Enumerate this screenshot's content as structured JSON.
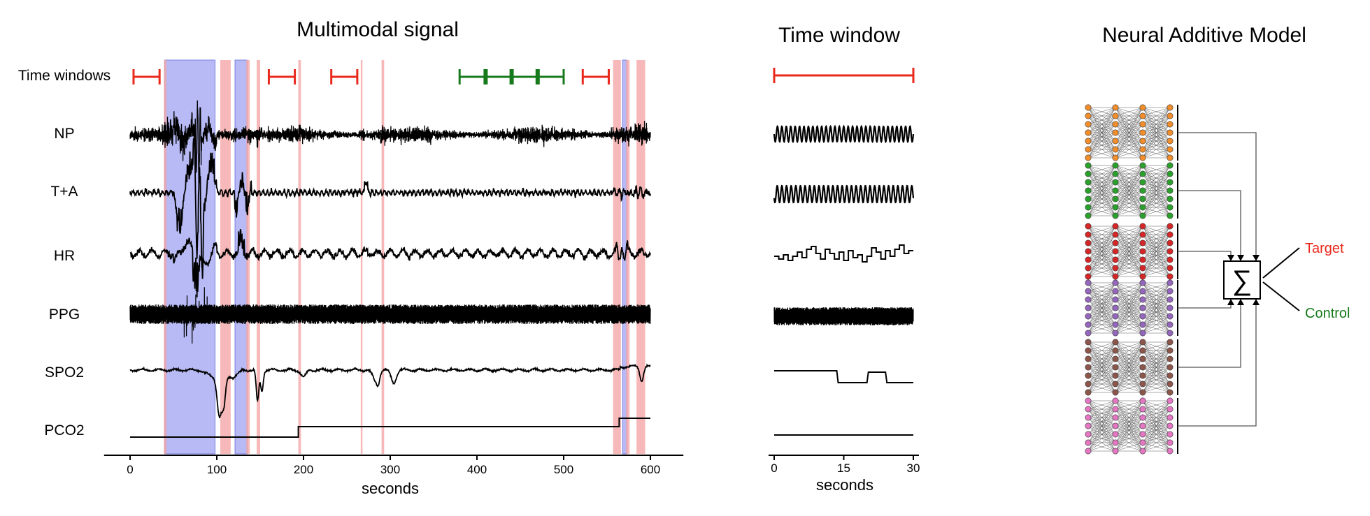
{
  "panels": {
    "signal": {
      "title": "Multimodal signal",
      "windows_label": "Time windows",
      "channels": [
        "NP",
        "T+A",
        "HR",
        "PPG",
        "SPO2",
        "PCO2"
      ],
      "xlabel": "seconds",
      "xticks": [
        "0",
        "100",
        "200",
        "300",
        "400",
        "500",
        "600"
      ],
      "xlim": [
        -30,
        630
      ]
    },
    "window": {
      "title": "Time window",
      "xlabel": "seconds",
      "xticks": [
        "0",
        "15",
        "30"
      ],
      "xlim": [
        0,
        30
      ]
    },
    "nam": {
      "title": "Neural Additive Model",
      "sum_symbol": "∑",
      "outputs": [
        "Target",
        "Control"
      ],
      "subnet_colors": [
        "#f28e2b",
        "#2ca02c",
        "#d62728",
        "#9467bd",
        "#8c564b",
        "#e377c2"
      ]
    }
  },
  "colors": {
    "event_red": "#f4a6a6",
    "event_blue": "#9fa3f0",
    "target": "#e8291c",
    "control": "#167a1c",
    "trace": "#000000"
  },
  "chart_data": [
    {
      "type": "line",
      "title": "Multimodal signal",
      "xlabel": "seconds",
      "xlim": [
        -30,
        630
      ],
      "series": [
        {
          "name": "NP"
        },
        {
          "name": "T+A"
        },
        {
          "name": "HR"
        },
        {
          "name": "PPG"
        },
        {
          "name": "SPO2"
        },
        {
          "name": "PCO2"
        }
      ],
      "pco2_steps": [
        [
          0,
          194,
          0
        ],
        [
          194,
          564,
          1
        ],
        [
          564,
          600,
          2
        ]
      ],
      "event_spans": {
        "blue": [
          [
            40,
            98
          ],
          [
            121,
            135
          ],
          [
            568,
            573
          ]
        ],
        "red": [
          [
            39,
            42
          ],
          [
            104,
            116
          ],
          [
            134,
            138
          ],
          [
            146,
            150
          ],
          [
            194,
            197
          ],
          [
            266,
            268
          ],
          [
            290,
            293
          ],
          [
            557,
            566
          ],
          [
            572,
            576
          ],
          [
            584,
            594
          ]
        ]
      },
      "time_windows": {
        "target": [
          [
            4,
            34
          ],
          [
            160,
            190
          ],
          [
            232,
            262
          ],
          [
            522,
            552
          ]
        ],
        "control": [
          [
            380,
            410
          ],
          [
            410,
            440
          ],
          [
            440,
            470
          ],
          [
            470,
            500
          ]
        ]
      }
    },
    {
      "type": "line",
      "title": "Time window",
      "xlabel": "seconds",
      "xlim": [
        0,
        30
      ],
      "xticks": [
        0,
        15,
        30
      ]
    }
  ]
}
